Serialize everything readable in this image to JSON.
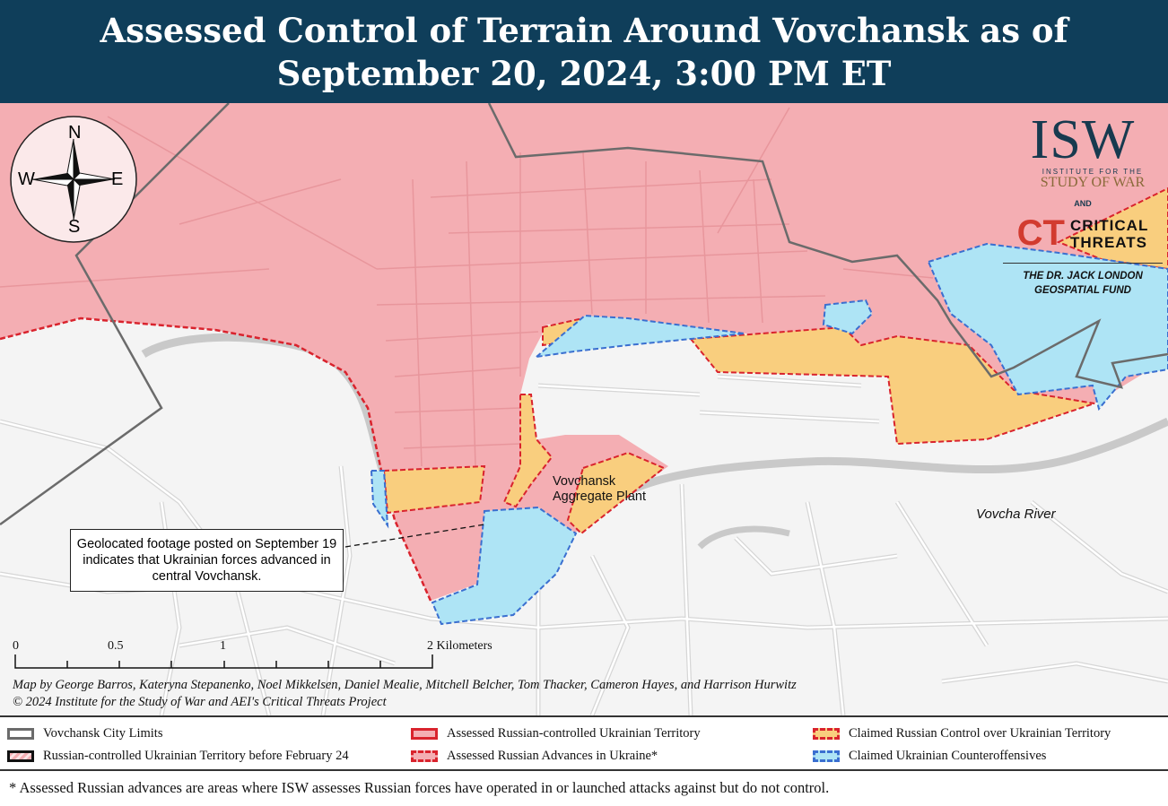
{
  "header": {
    "title_line1": "Assessed Control of Terrain Around Vovchansk as of",
    "title_line2": "September 20, 2024, 3:00 PM ET"
  },
  "compass": {
    "n": "N",
    "s": "S",
    "e": "E",
    "w": "W",
    "icon": "compass-rose-icon"
  },
  "logo": {
    "isw": "ISW",
    "institute": "INSTITUTE FOR THE",
    "study_of_war": "STUDY OF WAR",
    "and": "AND",
    "ct_mark": "CT",
    "critical": "CRITICAL",
    "threats": "THREATS",
    "fund_line1": "THE DR. JACK LONDON",
    "fund_line2": "GEOSPATIAL FUND"
  },
  "map": {
    "plant_label_line1": "Vovchansk",
    "plant_label_line2": "Aggregate Plant",
    "river_label": "Vovcha River",
    "annotation": "Geolocated footage posted on September 19 indicates that Ukrainian forces advanced in central Vovchansk.",
    "colors": {
      "russian": "#f4aeb3",
      "claimed_russian": "#f9ce7e",
      "ukrainian_counteroffensive": "#aee4f5",
      "background": "#f4f4f4",
      "border_red": "#d9232d",
      "border_blue": "#3a6fd0",
      "city_limits": "#6b6b6b",
      "header": "#0f3e5a"
    }
  },
  "scale": {
    "t0": "0",
    "t05": "0.5",
    "t1": "1",
    "t2": "2 Kilometers"
  },
  "credits": {
    "line1": "Map by George Barros, Kateryna Stepanenko, Noel Mikkelsen, Daniel Mealie, Mitchell Belcher, Tom Thacker, Cameron Hayes, and Harrison Hurwitz",
    "line2": "© 2024 Institute for the Study of War and AEI's Critical Threats Project"
  },
  "legend": [
    {
      "label": "Vovchansk City Limits"
    },
    {
      "label": "Russian-controlled Ukrainian Territory before February 24"
    },
    {
      "label": "Assessed Russian-controlled Ukrainian Territory"
    },
    {
      "label": "Assessed Russian Advances in Ukraine*"
    },
    {
      "label": "Claimed Russian Control over Ukrainian Territory"
    },
    {
      "label": "Claimed Ukrainian Counteroffensives"
    }
  ],
  "footnote": "* Assessed Russian advances are areas where ISW assesses Russian forces have operated in or launched attacks against but do not control."
}
